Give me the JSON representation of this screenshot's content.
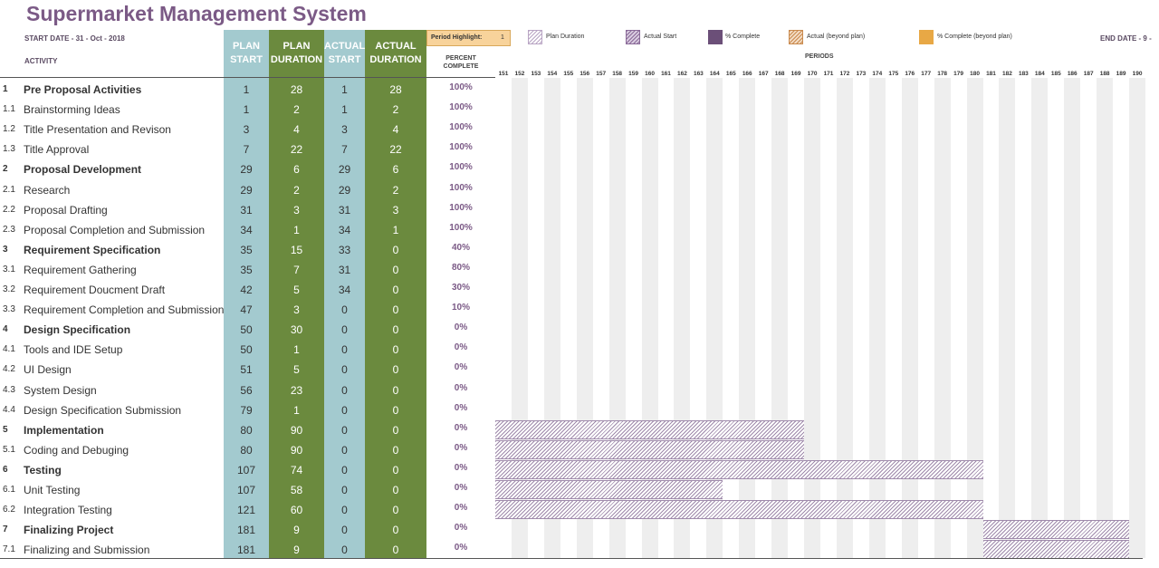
{
  "header": {
    "title": "Supermarket Management System",
    "start_date": "START DATE - 31 - Oct - 2018",
    "end_date": "END DATE - 9 -",
    "activity_label": "ACTIVITY",
    "plan_start": [
      "PLAN",
      "START"
    ],
    "plan_duration": [
      "PLAN",
      "DURATION"
    ],
    "actual_start": [
      "ACTUAL",
      "START"
    ],
    "actual_duration": [
      "ACTUAL",
      "DURATION"
    ],
    "percent_complete": [
      "PERCENT",
      "COMPLETE"
    ],
    "periods": "PERIODS"
  },
  "period_highlight": {
    "label": "Period Highlight:",
    "value": "1"
  },
  "legend": [
    {
      "label": "Plan Duration",
      "style": "hatch-light"
    },
    {
      "label": "Actual Start",
      "style": "hatch-purple"
    },
    {
      "label": "% Complete",
      "style": "solid-purple"
    },
    {
      "label": "Actual (beyond plan)",
      "style": "hatch-orange"
    },
    {
      "label": "% Complete (beyond plan)",
      "style": "solid-orange"
    }
  ],
  "period_range": {
    "first": 151,
    "last": 190
  },
  "activities": [
    {
      "num": "1",
      "name": "Pre Proposal Activities",
      "bold": true,
      "plan_start": "1",
      "plan_duration": "28",
      "actual_start": "1",
      "actual_duration": "28",
      "percent": "100%"
    },
    {
      "num": "1.1",
      "name": "Brainstorming Ideas",
      "bold": false,
      "plan_start": "1",
      "plan_duration": "2",
      "actual_start": "1",
      "actual_duration": "2",
      "percent": "100%"
    },
    {
      "num": "1.2",
      "name": "Title Presentation and Revison",
      "bold": false,
      "plan_start": "3",
      "plan_duration": "4",
      "actual_start": "3",
      "actual_duration": "4",
      "percent": "100%"
    },
    {
      "num": "1.3",
      "name": "Title Approval",
      "bold": false,
      "plan_start": "7",
      "plan_duration": "22",
      "actual_start": "7",
      "actual_duration": "22",
      "percent": "100%"
    },
    {
      "num": "2",
      "name": "Proposal Development",
      "bold": true,
      "plan_start": "29",
      "plan_duration": "6",
      "actual_start": "29",
      "actual_duration": "6",
      "percent": "100%"
    },
    {
      "num": "2.1",
      "name": "Research",
      "bold": false,
      "plan_start": "29",
      "plan_duration": "2",
      "actual_start": "29",
      "actual_duration": "2",
      "percent": "100%"
    },
    {
      "num": "2.2",
      "name": "Proposal Drafting",
      "bold": false,
      "plan_start": "31",
      "plan_duration": "3",
      "actual_start": "31",
      "actual_duration": "3",
      "percent": "100%"
    },
    {
      "num": "2.3",
      "name": "Proposal Completion and Submission",
      "bold": false,
      "plan_start": "34",
      "plan_duration": "1",
      "actual_start": "34",
      "actual_duration": "1",
      "percent": "100%"
    },
    {
      "num": "3",
      "name": "Requirement Specification",
      "bold": true,
      "plan_start": "35",
      "plan_duration": "15",
      "actual_start": "33",
      "actual_duration": "0",
      "percent": "40%"
    },
    {
      "num": "3.1",
      "name": "Requirement Gathering",
      "bold": false,
      "plan_start": "35",
      "plan_duration": "7",
      "actual_start": "31",
      "actual_duration": "0",
      "percent": "80%"
    },
    {
      "num": "3.2",
      "name": "Requirement Doucment Draft",
      "bold": false,
      "plan_start": "42",
      "plan_duration": "5",
      "actual_start": "34",
      "actual_duration": "0",
      "percent": "30%"
    },
    {
      "num": "3.3",
      "name": "Requirement Completion and Submission",
      "bold": false,
      "plan_start": "47",
      "plan_duration": "3",
      "actual_start": "0",
      "actual_duration": "0",
      "percent": "10%"
    },
    {
      "num": "4",
      "name": "Design Specification",
      "bold": true,
      "plan_start": "50",
      "plan_duration": "30",
      "actual_start": "0",
      "actual_duration": "0",
      "percent": "0%"
    },
    {
      "num": "4.1",
      "name": "Tools and IDE Setup",
      "bold": false,
      "plan_start": "50",
      "plan_duration": "1",
      "actual_start": "0",
      "actual_duration": "0",
      "percent": "0%"
    },
    {
      "num": "4.2",
      "name": "UI Design",
      "bold": false,
      "plan_start": "51",
      "plan_duration": "5",
      "actual_start": "0",
      "actual_duration": "0",
      "percent": "0%"
    },
    {
      "num": "4.3",
      "name": "System Design",
      "bold": false,
      "plan_start": "56",
      "plan_duration": "23",
      "actual_start": "0",
      "actual_duration": "0",
      "percent": "0%"
    },
    {
      "num": "4.4",
      "name": "Design Specification Submission",
      "bold": false,
      "plan_start": "79",
      "plan_duration": "1",
      "actual_start": "0",
      "actual_duration": "0",
      "percent": "0%"
    },
    {
      "num": "5",
      "name": "Implementation",
      "bold": true,
      "plan_start": "80",
      "plan_duration": "90",
      "actual_start": "0",
      "actual_duration": "0",
      "percent": "0%"
    },
    {
      "num": "5.1",
      "name": "Coding and Debuging",
      "bold": false,
      "plan_start": "80",
      "plan_duration": "90",
      "actual_start": "0",
      "actual_duration": "0",
      "percent": "0%"
    },
    {
      "num": "6",
      "name": "Testing",
      "bold": true,
      "plan_start": "107",
      "plan_duration": "74",
      "actual_start": "0",
      "actual_duration": "0",
      "percent": "0%"
    },
    {
      "num": "6.1",
      "name": "Unit Testing",
      "bold": false,
      "plan_start": "107",
      "plan_duration": "58",
      "actual_start": "0",
      "actual_duration": "0",
      "percent": "0%"
    },
    {
      "num": "6.2",
      "name": "Integration Testing",
      "bold": false,
      "plan_start": "121",
      "plan_duration": "60",
      "actual_start": "0",
      "actual_duration": "0",
      "percent": "0%"
    },
    {
      "num": "7",
      "name": "Finalizing Project",
      "bold": true,
      "plan_start": "181",
      "plan_duration": "9",
      "actual_start": "0",
      "actual_duration": "0",
      "percent": "0%"
    },
    {
      "num": "7.1",
      "name": "Finalizing and Submission",
      "bold": false,
      "plan_start": "181",
      "plan_duration": "9",
      "actual_start": "0",
      "actual_duration": "0",
      "percent": "0%"
    }
  ]
}
